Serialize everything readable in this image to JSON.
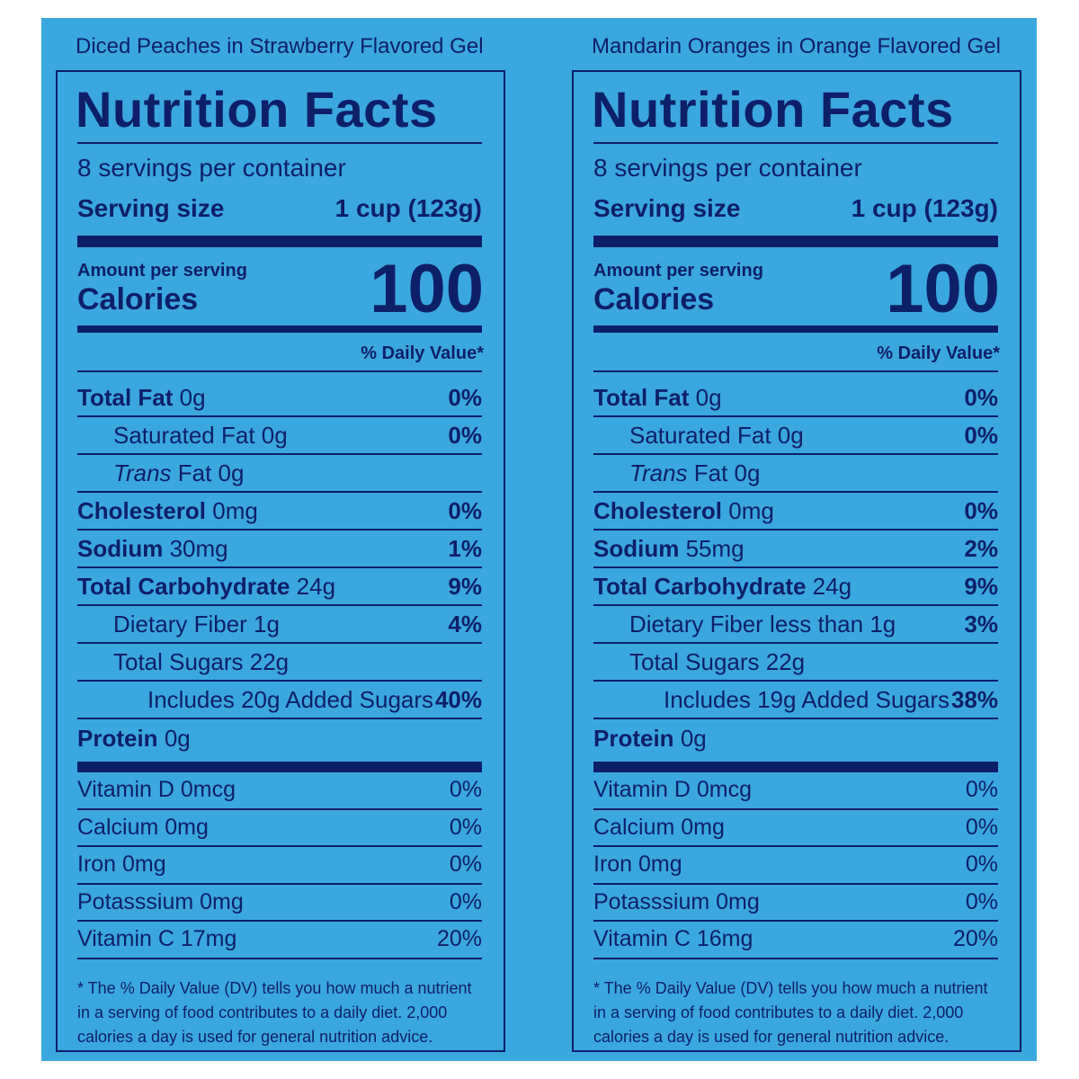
{
  "panels": [
    {
      "product": "Diced Peaches in Strawberry Flavored Gel",
      "title": "Nutrition Facts",
      "servings": "8 servings per container",
      "serving_size_label": "Serving size",
      "serving_size": "1 cup (123g)",
      "amount_label": "Amount per serving",
      "calories_label": "Calories",
      "calories": "100",
      "dv_header": "% Daily Value*",
      "nutrients": [
        {
          "name": "Total Fat",
          "amount": "0g",
          "dv": "0%",
          "indent": 0
        },
        {
          "name": "Saturated Fat 0g",
          "dv": "0%",
          "indent": 1
        },
        {
          "italic": "Trans",
          "name": "Fat 0g",
          "indent": 1
        },
        {
          "name": "Cholesterol",
          "amount": "0mg",
          "dv": "0%",
          "indent": 0
        },
        {
          "name": "Sodium",
          "amount": "30mg",
          "dv": "1%",
          "indent": 0
        },
        {
          "name": "Total Carbohydrate",
          "amount": "24g",
          "dv": "9%",
          "indent": 0
        },
        {
          "name": "Dietary Fiber 1g",
          "dv": "4%",
          "indent": 1
        },
        {
          "name": "Total Sugars 22g",
          "indent": 1
        },
        {
          "name": "Includes 20g Added Sugars",
          "dv": "40%",
          "indent": 2
        },
        {
          "name": "Protein",
          "amount": "0g",
          "indent": 0
        }
      ],
      "vitamins": [
        {
          "name": "Vitamin D 0mcg",
          "dv": "0%"
        },
        {
          "name": "Calcium 0mg",
          "dv": "0%"
        },
        {
          "name": "Iron 0mg",
          "dv": "0%"
        },
        {
          "name": "Potasssium 0mg",
          "dv": "0%"
        },
        {
          "name": "Vitamin C 17mg",
          "dv": "20%"
        }
      ],
      "footnote": [
        "* The % Daily Value (DV) tells you how much a nutrient",
        "in a serving of food contributes to a daily diet. 2,000",
        "calories a day is used for general nutrition advice."
      ]
    },
    {
      "product": "Mandarin Oranges in Orange Flavored Gel",
      "title": "Nutrition Facts",
      "servings": "8 servings per container",
      "serving_size_label": "Serving size",
      "serving_size": "1 cup (123g)",
      "amount_label": "Amount per serving",
      "calories_label": "Calories",
      "calories": "100",
      "dv_header": "% Daily Value*",
      "nutrients": [
        {
          "name": "Total Fat",
          "amount": "0g",
          "dv": "0%",
          "indent": 0
        },
        {
          "name": "Saturated Fat 0g",
          "dv": "0%",
          "indent": 1
        },
        {
          "italic": "Trans",
          "name": "Fat 0g",
          "indent": 1
        },
        {
          "name": "Cholesterol",
          "amount": "0mg",
          "dv": "0%",
          "indent": 0
        },
        {
          "name": "Sodium",
          "amount": "55mg",
          "dv": "2%",
          "indent": 0
        },
        {
          "name": "Total Carbohydrate",
          "amount": "24g",
          "dv": "9%",
          "indent": 0
        },
        {
          "name": "Dietary Fiber less than 1g",
          "dv": "3%",
          "indent": 1
        },
        {
          "name": "Total Sugars 22g",
          "indent": 1
        },
        {
          "name": "Includes 19g Added Sugars",
          "dv": "38%",
          "indent": 2
        },
        {
          "name": "Protein",
          "amount": "0g",
          "indent": 0
        }
      ],
      "vitamins": [
        {
          "name": "Vitamin D 0mcg",
          "dv": "0%"
        },
        {
          "name": "Calcium 0mg",
          "dv": "0%"
        },
        {
          "name": "Iron 0mg",
          "dv": "0%"
        },
        {
          "name": "Potasssium 0mg",
          "dv": "0%"
        },
        {
          "name": "Vitamin C 16mg",
          "dv": "20%"
        }
      ],
      "footnote": [
        "* The % Daily Value (DV) tells you how much a nutrient",
        "in a serving of food contributes to a daily diet. 2,000",
        "calories a day is used for general nutrition advice."
      ]
    }
  ]
}
